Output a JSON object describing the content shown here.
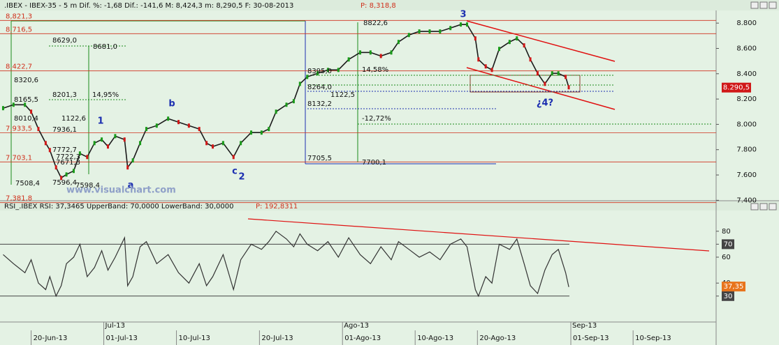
{
  "chart_data": {
    "type": "candlestick-close",
    "header": ".IBEX - IBEX-35 - 5 m Dif. %: -1,68 Dif.: -141,6 M: 8,424,3 m: 8,290,5 F: 30-08-2013",
    "header_p": "P: 8,318,8",
    "xlim": [
      0,
      69
    ],
    "xticks": [
      {
        "value": 3,
        "label": "20-Jun-13"
      },
      {
        "value": 10,
        "label": "01-Jul-13"
      },
      {
        "value": 17,
        "label": "10-Jul-13"
      },
      {
        "value": 25,
        "label": "20-Jul-13"
      },
      {
        "value": 33,
        "label": "01-Ago-13"
      },
      {
        "value": 40,
        "label": "10-Ago-13"
      },
      {
        "value": 46,
        "label": "20-Ago-13"
      },
      {
        "value": 55,
        "label": "01-Sep-13"
      },
      {
        "value": 61,
        "label": "10-Sep-13"
      }
    ],
    "month_ticks": [
      {
        "value": 10,
        "label": "Jul-13"
      },
      {
        "value": 33,
        "label": "Ago-13"
      },
      {
        "value": 55,
        "label": "Sep-13"
      }
    ],
    "ylim": [
      7380,
      8900
    ],
    "yticks": [
      {
        "value": 8800,
        "label": "8.800"
      },
      {
        "value": 8600,
        "label": "8.600"
      },
      {
        "value": 8400,
        "label": "8.400"
      },
      {
        "value": 8200,
        "label": "8.200"
      },
      {
        "value": 8000,
        "label": "8.000"
      },
      {
        "value": 7800,
        "label": "7.800"
      },
      {
        "value": 7600,
        "label": "7.600"
      },
      {
        "value": 7400,
        "label": "7.400"
      }
    ],
    "last_price": {
      "value": 8290.5,
      "label": "8.290,5"
    },
    "levels": [
      {
        "value": 8821.3,
        "label": "8,821,3"
      },
      {
        "value": 8716.5,
        "label": "8,716,5"
      },
      {
        "value": 8422.7,
        "label": "8,422,7"
      },
      {
        "value": 7933.5,
        "label": "7,933,5"
      },
      {
        "value": 7703.1,
        "label": "7,703,1"
      },
      {
        "value": 7381.8,
        "label": "7,381,8"
      }
    ],
    "x": [
      0.3,
      1.3,
      2.4,
      3.0,
      3.7,
      4.4,
      4.8,
      5.4,
      5.9,
      6.4,
      7.1,
      7.7,
      8.4,
      9.1,
      9.8,
      10.4,
      11.1,
      12.0,
      12.3,
      12.8,
      13.5,
      14.1,
      15.1,
      16.2,
      17.2,
      18.2,
      19.2,
      19.9,
      20.5,
      21.5,
      22.5,
      23.2,
      24.2,
      25.2,
      25.9,
      26.6,
      27.6,
      28.3,
      28.9,
      29.6,
      30.6,
      31.6,
      32.6,
      33.6,
      34.7,
      35.7,
      36.7,
      37.7,
      38.4,
      39.4,
      40.4,
      41.4,
      42.4,
      43.4,
      44.4,
      45.0,
      45.8,
      46.1,
      46.8,
      47.4,
      48.1,
      49.1,
      49.8,
      50.5,
      51.1,
      51.8,
      52.5,
      53.2,
      53.8,
      54.5,
      54.8
    ],
    "series": [
      {
        "name": "IBEX-35",
        "color": "#1a1a1a",
        "values": [
          8128,
          8155,
          8155,
          8100,
          7963,
          7852,
          7797,
          7660,
          7577,
          7604,
          7632,
          7770,
          7742,
          7852,
          7880,
          7825,
          7907,
          7880,
          7660,
          7715,
          7852,
          7963,
          7990,
          8045,
          8018,
          7990,
          7963,
          7852,
          7825,
          7852,
          7742,
          7852,
          7935,
          7935,
          7963,
          8100,
          8155,
          8183,
          8320,
          8375,
          8403,
          8430,
          8430,
          8513,
          8568,
          8568,
          8540,
          8568,
          8651,
          8706,
          8734,
          8734,
          8734,
          8761,
          8789,
          8789,
          8679,
          8513,
          8458,
          8430,
          8596,
          8651,
          8679,
          8624,
          8513,
          8403,
          8320,
          8403,
          8403,
          8375,
          8293
        ]
      }
    ],
    "annotations": [
      "8629,0",
      "8681,0",
      "8201,3",
      "14,95%",
      "8165,5",
      "8320,6",
      "8010,4",
      "1122,6",
      "7936,1",
      "7772,7",
      "7722,3",
      "7671,3",
      "7508,4",
      "7596,4",
      "7598,4",
      "8822,6",
      "8395,0",
      "14,58%",
      "8264,0",
      "1122,5",
      "8132,2",
      "-12,72%",
      "7705,5",
      "7700,1"
    ],
    "waves": [
      "1",
      "a",
      "b",
      "c",
      "2",
      "3",
      "¿4?"
    ],
    "watermark": "www.visualchart.com",
    "rsi": {
      "header": "RSI_.IBEX RSI: 37,3465 UpperBand: 70,0000 LowerBand: 30,0000",
      "header_p": "P: 192,8311",
      "ylim": [
        10,
        96
      ],
      "yticks": [
        30,
        40,
        60,
        70,
        80
      ],
      "bands": [
        70,
        30
      ],
      "last": {
        "value": 37.35,
        "label": "37,35"
      },
      "color": "#333333",
      "values": [
        62,
        55,
        48,
        58,
        40,
        35,
        45,
        30,
        38,
        55,
        60,
        70,
        45,
        52,
        65,
        50,
        60,
        75,
        38,
        45,
        68,
        72,
        55,
        62,
        48,
        40,
        55,
        38,
        45,
        62,
        35,
        58,
        70,
        66,
        72,
        80,
        74,
        68,
        78,
        70,
        65,
        72,
        60,
        75,
        62,
        55,
        68,
        58,
        72,
        66,
        60,
        64,
        58,
        70,
        74,
        68,
        35,
        30,
        45,
        40,
        70,
        66,
        74,
        55,
        38,
        32,
        50,
        62,
        66,
        48,
        37
      ]
    }
  }
}
